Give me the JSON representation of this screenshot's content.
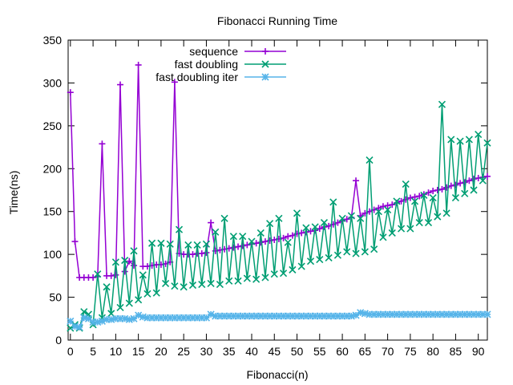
{
  "chart_data": {
    "type": "line",
    "title": "Fibonacci Running Time",
    "xlabel": "Fibonacci(n)",
    "ylabel": "Time(ns)",
    "xlim": [
      -0.5,
      92
    ],
    "ylim": [
      0,
      350
    ],
    "xticks": [
      0,
      5,
      10,
      15,
      20,
      25,
      30,
      35,
      40,
      45,
      50,
      55,
      60,
      65,
      70,
      75,
      80,
      85,
      90
    ],
    "yticks": [
      0,
      50,
      100,
      150,
      200,
      250,
      300,
      350
    ],
    "grid": false,
    "legend_position": "top-right",
    "series": [
      {
        "name": "sequence",
        "color": "#9400d3",
        "marker": "plus",
        "values": [
          289,
          115,
          73,
          73,
          73,
          73,
          74,
          229,
          75,
          75,
          76,
          298,
          80,
          92,
          87,
          321,
          86,
          86,
          87,
          88,
          88,
          89,
          91,
          301,
          101,
          100,
          100,
          100,
          101,
          101,
          102,
          137,
          104,
          105,
          106,
          107,
          108,
          109,
          110,
          111,
          112,
          113,
          114,
          115,
          116,
          117,
          118,
          119,
          121,
          122,
          124,
          125,
          126,
          127,
          128,
          130,
          132,
          133,
          135,
          137,
          139,
          141,
          143,
          186,
          145,
          148,
          150,
          152,
          154,
          156,
          157,
          158,
          160,
          162,
          164,
          166,
          167,
          168,
          170,
          172,
          174,
          175,
          176,
          178,
          180,
          181,
          183,
          184,
          186,
          188,
          189,
          190,
          191
        ]
      },
      {
        "name": "fast doubling",
        "color": "#009e73",
        "marker": "x",
        "values": [
          14,
          18,
          14,
          33,
          30,
          18,
          77,
          26,
          62,
          31,
          91,
          38,
          93,
          43,
          104,
          47,
          76,
          54,
          113,
          55,
          113,
          66,
          112,
          63,
          129,
          62,
          111,
          64,
          111,
          65,
          112,
          66,
          126,
          65,
          142,
          69,
          121,
          69,
          121,
          72,
          115,
          71,
          125,
          73,
          136,
          77,
          142,
          78,
          114,
          82,
          148,
          86,
          131,
          92,
          132,
          94,
          137,
          96,
          161,
          99,
          142,
          103,
          145,
          101,
          142,
          103,
          210,
          106,
          150,
          120,
          152,
          125,
          162,
          130,
          182,
          130,
          162,
          137,
          169,
          137,
          166,
          144,
          275,
          148,
          234,
          166,
          232,
          171,
          234,
          175,
          240,
          186,
          230
        ]
      },
      {
        "name": "fast doubling iter",
        "color": "#56b4e9",
        "marker": "asterisk",
        "values": [
          22,
          16,
          15,
          26,
          25,
          21,
          21,
          22,
          24,
          24,
          25,
          25,
          25,
          24,
          25,
          29,
          27,
          26,
          26,
          26,
          26,
          26,
          26,
          26,
          26,
          26,
          26,
          26,
          26,
          26,
          26,
          30,
          28,
          28,
          28,
          28,
          28,
          28,
          28,
          28,
          28,
          28,
          28,
          28,
          28,
          28,
          28,
          28,
          28,
          28,
          28,
          28,
          28,
          28,
          28,
          28,
          28,
          28,
          28,
          28,
          28,
          28,
          28,
          29,
          32,
          31,
          30,
          30,
          30,
          30,
          30,
          30,
          30,
          30,
          30,
          30,
          30,
          30,
          30,
          30,
          30,
          30,
          30,
          30,
          30,
          30,
          30,
          30,
          30,
          30,
          30,
          30,
          30
        ]
      }
    ]
  }
}
